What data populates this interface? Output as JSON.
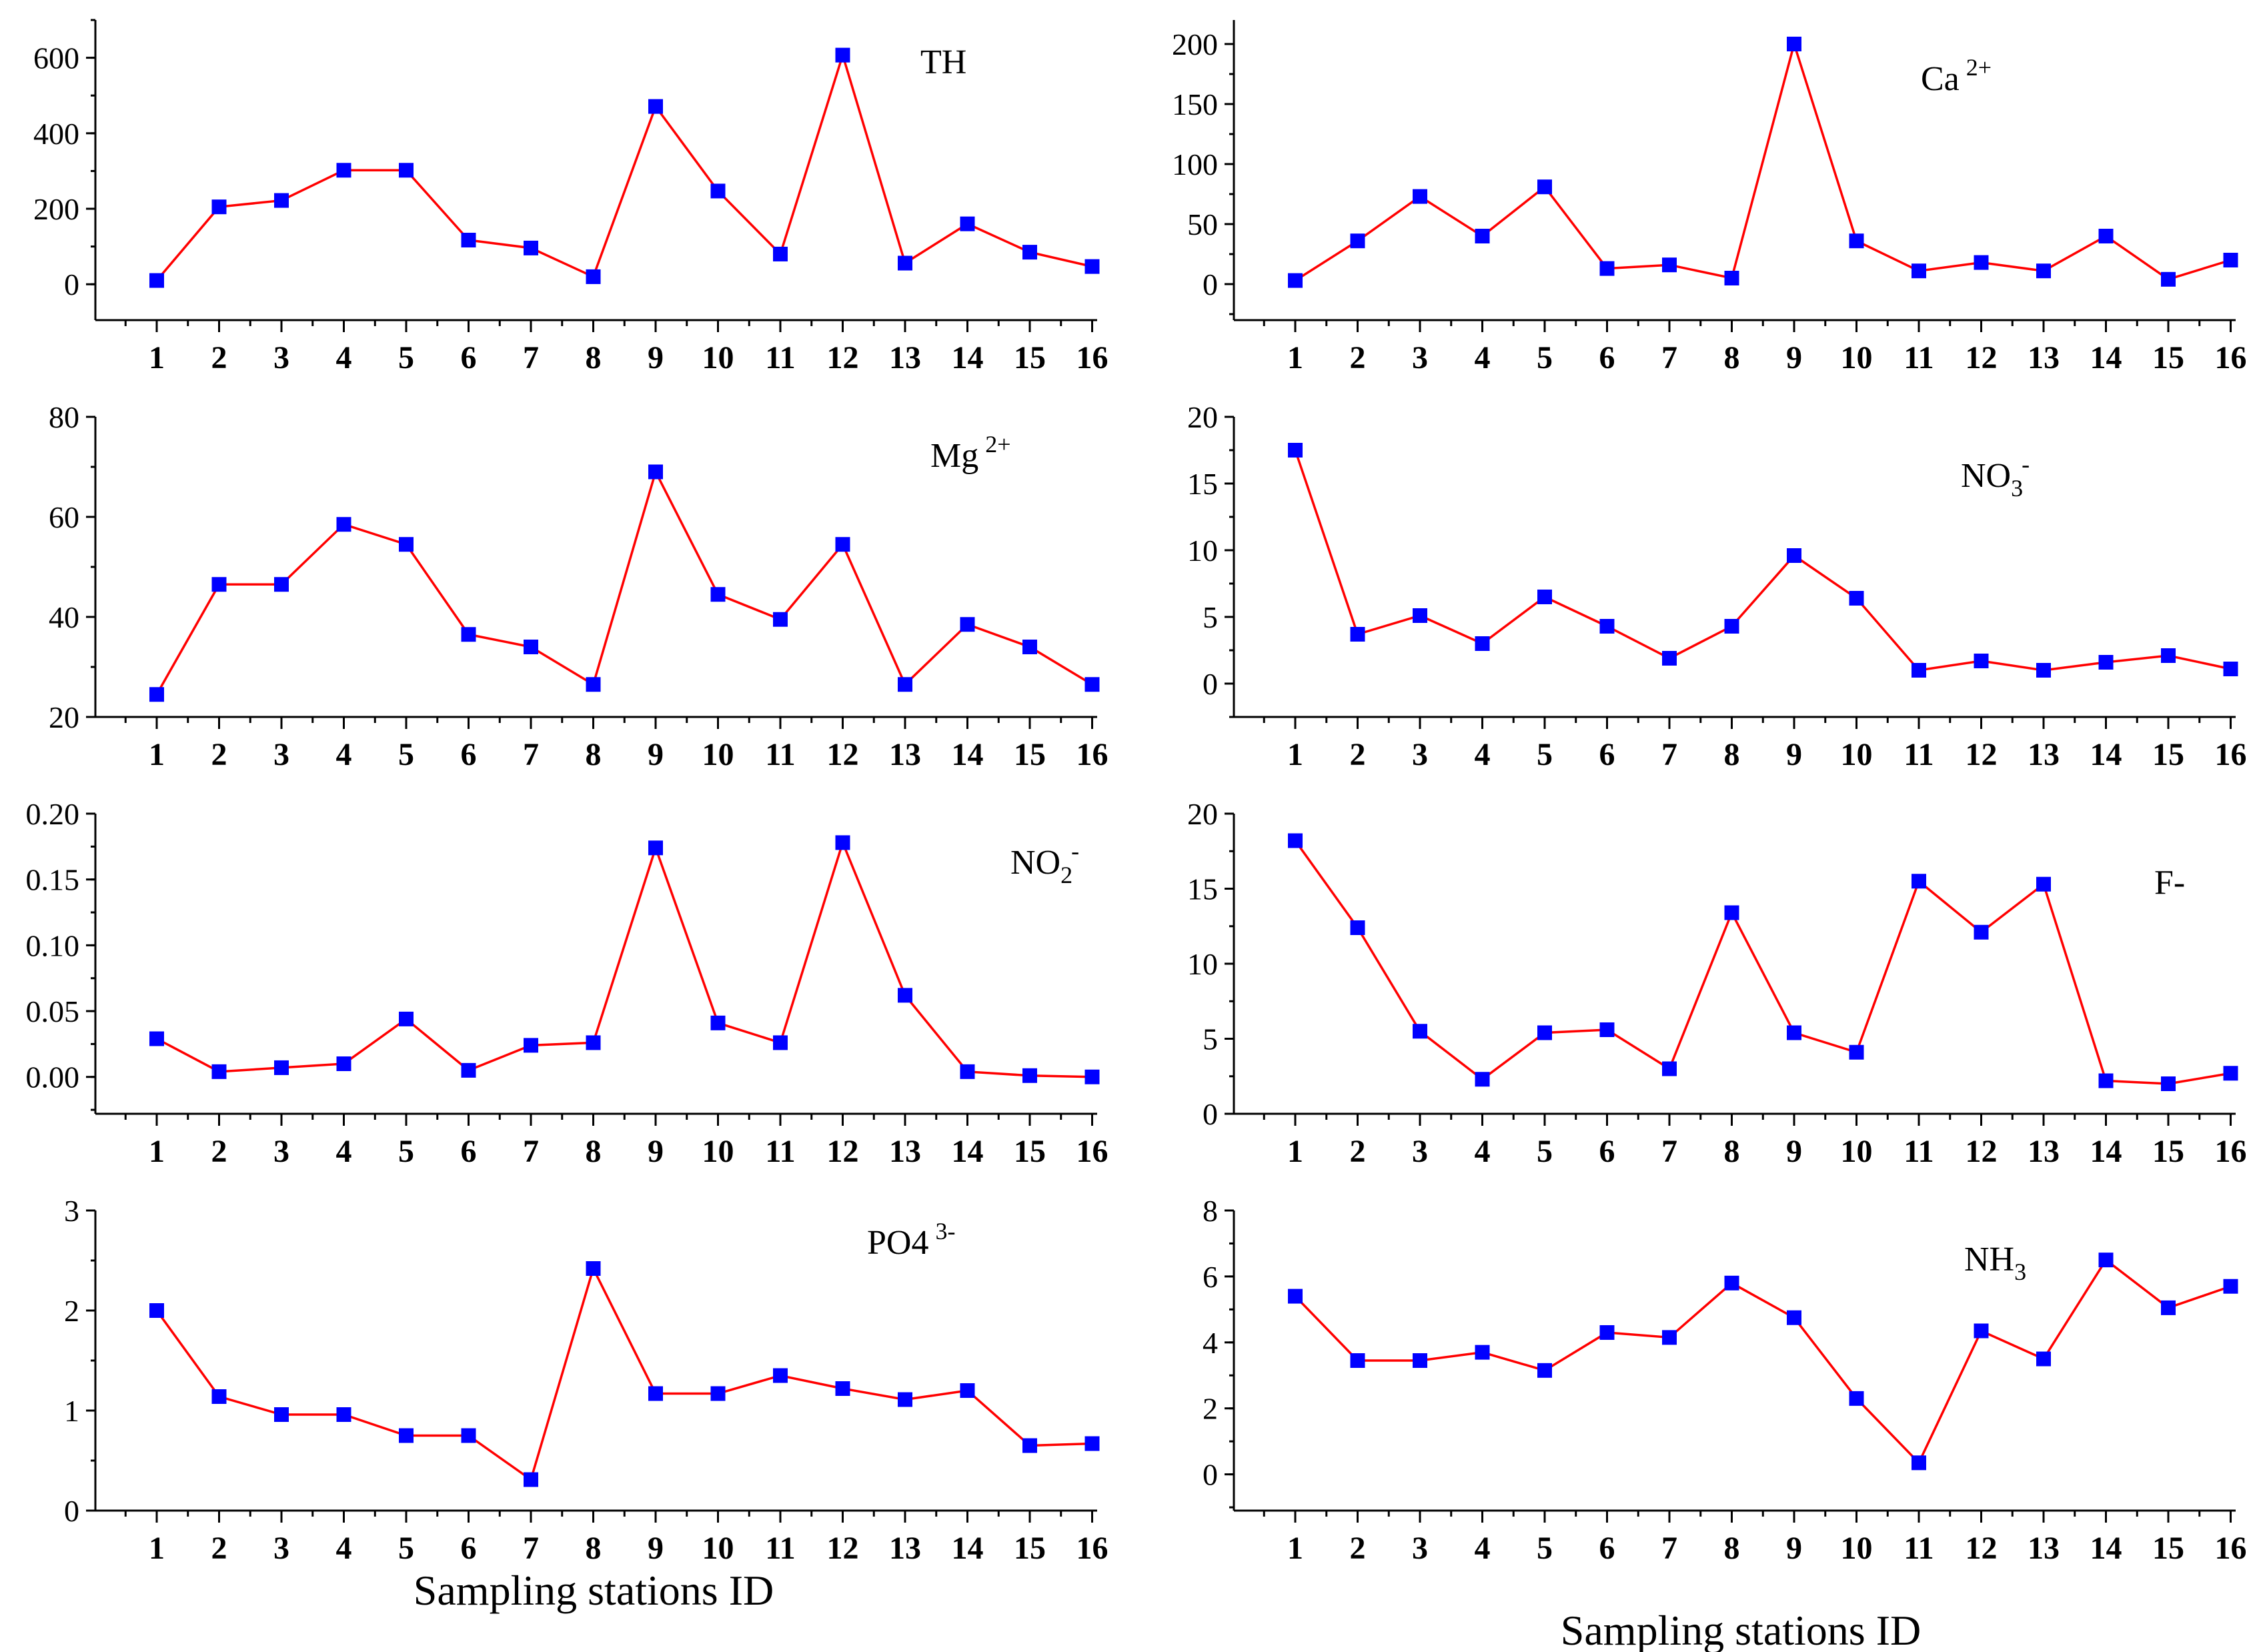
{
  "chart_data": [
    {
      "type": "line",
      "name": "th",
      "label": {
        "main": "TH",
        "sup": "",
        "sub": ""
      },
      "categories": [
        "1",
        "2",
        "3",
        "4",
        "5",
        "6",
        "7",
        "8",
        "9",
        "10",
        "11",
        "12",
        "13",
        "14",
        "15",
        "16"
      ],
      "values": [
        10,
        205,
        222,
        302,
        302,
        117,
        96,
        20,
        471,
        247,
        80,
        607,
        56,
        160,
        85,
        47
      ],
      "yticks": [
        "0",
        "200",
        "400",
        "600"
      ],
      "ylim": [
        -95,
        700
      ],
      "line_color": "#ff0000",
      "marker_color": "#0000ff"
    },
    {
      "type": "line",
      "name": "ca",
      "label": {
        "main": "Ca",
        "sup": "2+",
        "sub": ""
      },
      "categories": [
        "1",
        "2",
        "3",
        "4",
        "5",
        "6",
        "7",
        "8",
        "9",
        "10",
        "11",
        "12",
        "13",
        "14",
        "15",
        "16"
      ],
      "values": [
        3,
        36,
        73,
        40,
        81,
        13,
        16,
        5,
        200,
        36,
        11,
        18,
        11,
        40,
        4,
        20
      ],
      "yticks": [
        "0",
        "50",
        "100",
        "150",
        "200"
      ],
      "ylim": [
        -30,
        220
      ],
      "line_color": "#ff0000",
      "marker_color": "#0000ff"
    },
    {
      "type": "line",
      "name": "mg",
      "label": {
        "main": "Mg",
        "sup": "2+",
        "sub": ""
      },
      "categories": [
        "1",
        "2",
        "3",
        "4",
        "5",
        "6",
        "7",
        "8",
        "9",
        "10",
        "11",
        "12",
        "13",
        "14",
        "15",
        "16"
      ],
      "values": [
        24.5,
        46.5,
        46.5,
        58.5,
        54.5,
        36.5,
        34,
        26.5,
        69,
        44.5,
        39.5,
        54.5,
        26.5,
        38.5,
        34,
        26.5
      ],
      "yticks": [
        "20",
        "40",
        "60",
        "80"
      ],
      "ylim": [
        20,
        80
      ],
      "line_color": "#ff0000",
      "marker_color": "#0000ff"
    },
    {
      "type": "line",
      "name": "no3",
      "label": {
        "main": "NO",
        "sup": "-",
        "sub": "3"
      },
      "categories": [
        "1",
        "2",
        "3",
        "4",
        "5",
        "6",
        "7",
        "8",
        "9",
        "10",
        "11",
        "12",
        "13",
        "14",
        "15",
        "16"
      ],
      "values": [
        17.5,
        3.7,
        5.1,
        3.0,
        6.5,
        4.3,
        1.9,
        4.3,
        9.6,
        6.4,
        1.0,
        1.7,
        1.0,
        1.6,
        2.1,
        1.1
      ],
      "yticks": [
        "0",
        "5",
        "10",
        "15",
        "20"
      ],
      "ylim": [
        -2.5,
        20
      ],
      "line_color": "#ff0000",
      "marker_color": "#0000ff"
    },
    {
      "type": "line",
      "name": "no2",
      "label": {
        "main": "NO",
        "sup": "-",
        "sub": "2"
      },
      "categories": [
        "1",
        "2",
        "3",
        "4",
        "5",
        "6",
        "7",
        "8",
        "9",
        "10",
        "11",
        "12",
        "13",
        "14",
        "15",
        "16"
      ],
      "values": [
        0.029,
        0.004,
        0.007,
        0.01,
        0.044,
        0.005,
        0.024,
        0.026,
        0.174,
        0.041,
        0.026,
        0.178,
        0.062,
        0.004,
        0.001,
        0.0
      ],
      "yticks": [
        "0.00",
        "0.05",
        "0.10",
        "0.15",
        "0.20"
      ],
      "ylim": [
        -0.028,
        0.2
      ],
      "line_color": "#ff0000",
      "marker_color": "#0000ff"
    },
    {
      "type": "line",
      "name": "f",
      "label": {
        "main": "F-",
        "sup": "",
        "sub": ""
      },
      "categories": [
        "1",
        "2",
        "3",
        "4",
        "5",
        "6",
        "7",
        "8",
        "9",
        "10",
        "11",
        "12",
        "13",
        "14",
        "15",
        "16"
      ],
      "values": [
        18.2,
        12.4,
        5.5,
        2.3,
        5.4,
        5.6,
        3.0,
        13.4,
        5.4,
        4.1,
        15.5,
        12.1,
        15.3,
        2.2,
        2.0,
        2.7
      ],
      "yticks": [
        "0",
        "5",
        "10",
        "15",
        "20"
      ],
      "ylim": [
        0,
        20
      ],
      "line_color": "#ff0000",
      "marker_color": "#0000ff"
    },
    {
      "type": "line",
      "name": "po4",
      "label": {
        "main": "PO4",
        "sup": "3-",
        "sub": ""
      },
      "categories": [
        "1",
        "2",
        "3",
        "4",
        "5",
        "6",
        "7",
        "8",
        "9",
        "10",
        "11",
        "12",
        "13",
        "14",
        "15",
        "16"
      ],
      "values": [
        2.0,
        1.14,
        0.96,
        0.96,
        0.75,
        0.75,
        0.31,
        2.42,
        1.17,
        1.17,
        1.35,
        1.22,
        1.11,
        1.2,
        0.65,
        0.67
      ],
      "yticks": [
        "0",
        "1",
        "2",
        "3"
      ],
      "ylim": [
        0,
        3
      ],
      "line_color": "#ff0000",
      "marker_color": "#0000ff"
    },
    {
      "type": "line",
      "name": "nh3",
      "label": {
        "main": "NH",
        "sup": "",
        "sub": "3"
      },
      "categories": [
        "1",
        "2",
        "3",
        "4",
        "5",
        "6",
        "7",
        "8",
        "9",
        "10",
        "11",
        "12",
        "13",
        "14",
        "15",
        "16"
      ],
      "values": [
        5.4,
        3.45,
        3.45,
        3.7,
        3.15,
        4.3,
        4.15,
        5.8,
        4.75,
        2.3,
        0.35,
        4.35,
        3.5,
        6.5,
        5.05,
        5.7
      ],
      "yticks": [
        "0",
        "2",
        "4",
        "6",
        "8"
      ],
      "ylim": [
        -1.1,
        8
      ],
      "line_color": "#ff0000",
      "marker_color": "#0000ff"
    }
  ],
  "xlabels": {
    "left": "Sampling stations ID",
    "right": "Sampling stations ID"
  }
}
